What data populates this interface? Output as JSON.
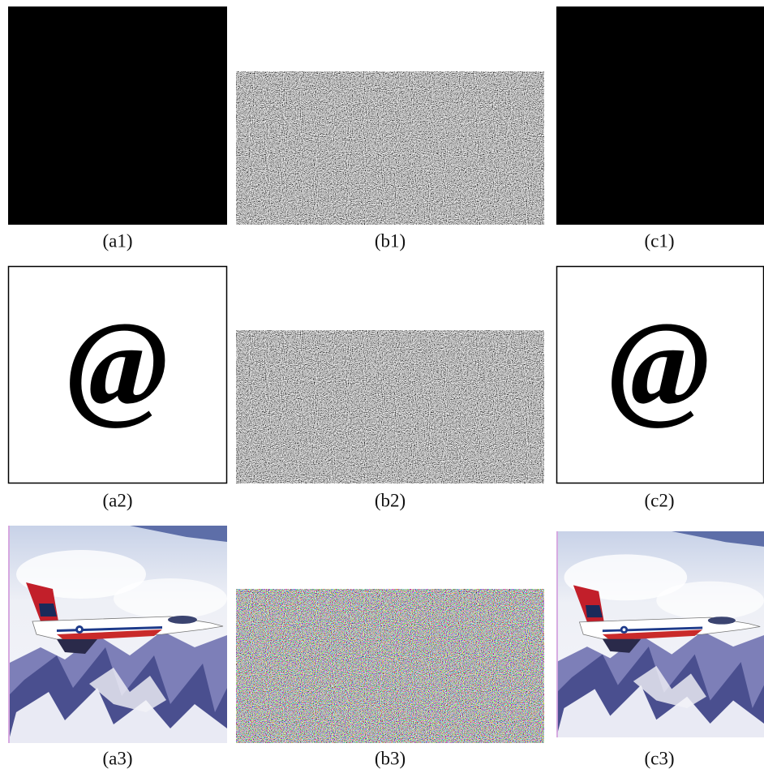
{
  "rows": [
    [
      "(a1)",
      "(b1)",
      "(c1)"
    ],
    [
      "(a2)",
      "(b2)",
      "(c2)"
    ],
    [
      "(a3)",
      "(b3)",
      "(c3)"
    ]
  ],
  "symbol": "@"
}
